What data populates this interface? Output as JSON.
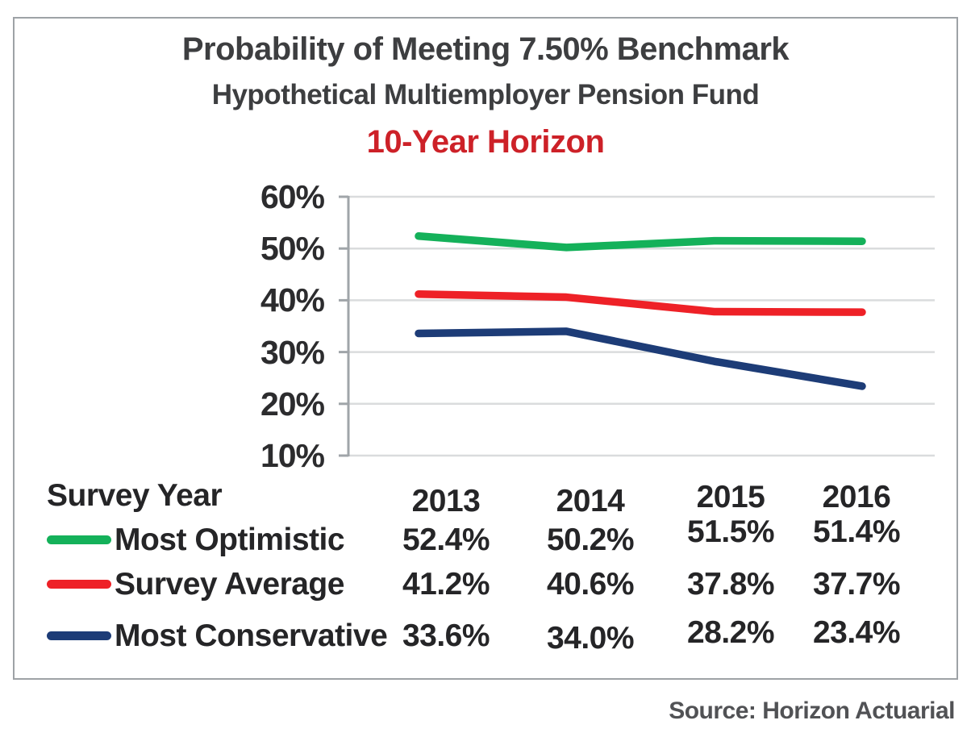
{
  "chart_data": {
    "type": "line",
    "title": "Probability of Meeting 7.50% Benchmark",
    "subtitle": "Hypothetical Multiemployer Pension Fund",
    "annotation": "10-Year Horizon",
    "annotation_color": "#CD2128",
    "x_categories": [
      "2013",
      "2014",
      "2015",
      "2016"
    ],
    "series": [
      {
        "name": "Most Optimistic",
        "color": "#14B15A",
        "values": [
          52.4,
          50.2,
          51.5,
          51.4
        ]
      },
      {
        "name": "Survey Average",
        "color": "#EE2127",
        "values": [
          41.2,
          40.6,
          37.8,
          37.7
        ]
      },
      {
        "name": "Most Conservative",
        "color": "#1D3C77",
        "values": [
          33.6,
          34.0,
          28.2,
          23.4
        ]
      }
    ],
    "ylim": [
      10,
      60
    ],
    "yticks": [
      60,
      50,
      40,
      30,
      20,
      10
    ],
    "ytick_labels": [
      "60%",
      "50%",
      "40%",
      "30%",
      "20%",
      "10%"
    ],
    "grid": true,
    "gridline_color": "#DADCDD",
    "axis_color": "#A0A5A9",
    "legend_position": "table-below-left"
  },
  "table": {
    "corner_label": "Survey Year",
    "col_headers": [
      "2013",
      "2014",
      "2015",
      "2016"
    ],
    "rows": [
      {
        "label": "Most Optimistic",
        "values": [
          "52.4%",
          "50.2%",
          "51.5%",
          "51.4%"
        ]
      },
      {
        "label": "Survey Average",
        "values": [
          "41.2%",
          "40.6%",
          "37.8%",
          "37.7%"
        ]
      },
      {
        "label": "Most Conservative",
        "values": [
          "33.6%",
          "34.0%",
          "28.2%",
          "23.4%"
        ]
      }
    ]
  },
  "footer": {
    "source": "Source: Horizon Actuarial"
  }
}
